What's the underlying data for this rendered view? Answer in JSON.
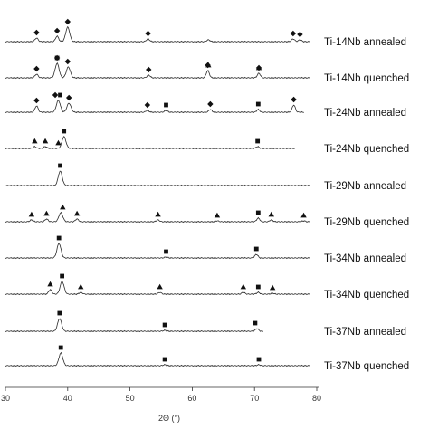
{
  "chart_data": {
    "type": "line",
    "xlabel": "2Θ (°)",
    "xlim": [
      30,
      80
    ],
    "xticks": [
      30,
      40,
      50,
      60,
      70,
      80
    ],
    "tick_labels": [
      "30",
      "40",
      "50",
      "60",
      "70",
      "80"
    ],
    "marker_colors": {
      "trace": "#2a2a2a",
      "marker": "#111111"
    },
    "series": [
      {
        "name": "Ti-14Nb annealed",
        "x_end": 79,
        "peaks": [
          {
            "x": 35.0,
            "h": 4
          },
          {
            "x": 38.3,
            "h": 6
          },
          {
            "x": 40.0,
            "h": 16
          },
          {
            "x": 52.9,
            "h": 3
          },
          {
            "x": 62.6,
            "h": 2
          },
          {
            "x": 76.2,
            "h": 3
          },
          {
            "x": 77.3,
            "h": 2
          }
        ],
        "markers": [
          {
            "x": 35.0,
            "shape": "diamond"
          },
          {
            "x": 38.3,
            "shape": "diamond"
          },
          {
            "x": 40.0,
            "shape": "diamond"
          },
          {
            "x": 52.9,
            "shape": "diamond"
          },
          {
            "x": 76.2,
            "shape": "diamond"
          },
          {
            "x": 77.3,
            "shape": "diamond"
          }
        ]
      },
      {
        "name": "Ti-14Nb quenched",
        "x_end": 79,
        "peaks": [
          {
            "x": 35.0,
            "h": 4
          },
          {
            "x": 38.3,
            "h": 16
          },
          {
            "x": 40.1,
            "h": 12
          },
          {
            "x": 53.0,
            "h": 3
          },
          {
            "x": 62.5,
            "h": 8
          },
          {
            "x": 70.7,
            "h": 5
          }
        ],
        "markers": [
          {
            "x": 35.0,
            "shape": "diamond"
          },
          {
            "x": 38.3,
            "shape": "square"
          },
          {
            "x": 38.3,
            "shape": "diamond"
          },
          {
            "x": 40.0,
            "shape": "diamond"
          },
          {
            "x": 53.0,
            "shape": "diamond"
          },
          {
            "x": 62.5,
            "shape": "diamond"
          },
          {
            "x": 62.6,
            "shape": "triangle"
          },
          {
            "x": 70.7,
            "shape": "diamond"
          },
          {
            "x": 70.7,
            "shape": "triangle"
          }
        ]
      },
      {
        "name": "Ti-24Nb annealed",
        "x_end": 78,
        "peaks": [
          {
            "x": 35.0,
            "h": 7
          },
          {
            "x": 38.5,
            "h": 13
          },
          {
            "x": 40.2,
            "h": 10
          },
          {
            "x": 52.8,
            "h": 2
          },
          {
            "x": 55.8,
            "h": 2
          },
          {
            "x": 62.9,
            "h": 3
          },
          {
            "x": 70.6,
            "h": 3
          },
          {
            "x": 76.3,
            "h": 8
          }
        ],
        "markers": [
          {
            "x": 35.0,
            "shape": "diamond"
          },
          {
            "x": 38.0,
            "shape": "diamond"
          },
          {
            "x": 38.8,
            "shape": "square"
          },
          {
            "x": 40.2,
            "shape": "diamond"
          },
          {
            "x": 52.8,
            "shape": "diamond"
          },
          {
            "x": 55.8,
            "shape": "square"
          },
          {
            "x": 62.9,
            "shape": "diamond"
          },
          {
            "x": 70.6,
            "shape": "square"
          },
          {
            "x": 76.3,
            "shape": "diamond"
          }
        ]
      },
      {
        "name": "Ti-24Nb quenched",
        "x_end": 76.5,
        "peaks": [
          {
            "x": 34.7,
            "h": 2
          },
          {
            "x": 36.4,
            "h": 2
          },
          {
            "x": 39.4,
            "h": 13
          },
          {
            "x": 70.5,
            "h": 2
          }
        ],
        "markers": [
          {
            "x": 34.7,
            "shape": "triangle"
          },
          {
            "x": 36.4,
            "shape": "triangle"
          },
          {
            "x": 38.5,
            "shape": "triangle"
          },
          {
            "x": 39.4,
            "shape": "square"
          },
          {
            "x": 70.5,
            "shape": "square"
          }
        ]
      },
      {
        "name": "Ti-29Nb annealed",
        "x_end": 79,
        "peaks": [
          {
            "x": 38.8,
            "h": 16
          }
        ],
        "markers": [
          {
            "x": 38.8,
            "shape": "square"
          }
        ]
      },
      {
        "name": "Ti-29Nb quenched",
        "x_end": 79,
        "peaks": [
          {
            "x": 34.2,
            "h": 2
          },
          {
            "x": 36.6,
            "h": 3
          },
          {
            "x": 38.9,
            "h": 10
          },
          {
            "x": 41.5,
            "h": 3
          },
          {
            "x": 54.5,
            "h": 2
          },
          {
            "x": 64.0,
            "h": 1
          },
          {
            "x": 70.6,
            "h": 4
          },
          {
            "x": 72.7,
            "h": 2
          },
          {
            "x": 77.9,
            "h": 1
          }
        ],
        "markers": [
          {
            "x": 34.2,
            "shape": "triangle"
          },
          {
            "x": 36.6,
            "shape": "triangle"
          },
          {
            "x": 39.2,
            "shape": "triangle"
          },
          {
            "x": 41.5,
            "shape": "triangle"
          },
          {
            "x": 54.5,
            "shape": "triangle"
          },
          {
            "x": 64.0,
            "shape": "triangle"
          },
          {
            "x": 70.6,
            "shape": "square"
          },
          {
            "x": 72.7,
            "shape": "triangle"
          },
          {
            "x": 77.9,
            "shape": "triangle"
          }
        ]
      },
      {
        "name": "Ti-34Nb annealed",
        "x_end": 79,
        "peaks": [
          {
            "x": 38.6,
            "h": 16
          },
          {
            "x": 55.8,
            "h": 1
          },
          {
            "x": 70.3,
            "h": 4
          }
        ],
        "markers": [
          {
            "x": 38.6,
            "shape": "square"
          },
          {
            "x": 55.8,
            "shape": "square"
          },
          {
            "x": 70.3,
            "shape": "square"
          }
        ]
      },
      {
        "name": "Ti-34Nb quenched",
        "x_end": 79,
        "peaks": [
          {
            "x": 37.2,
            "h": 5
          },
          {
            "x": 39.1,
            "h": 14
          },
          {
            "x": 42.1,
            "h": 2
          },
          {
            "x": 54.8,
            "h": 2
          },
          {
            "x": 68.2,
            "h": 2
          },
          {
            "x": 70.6,
            "h": 2
          },
          {
            "x": 72.9,
            "h": 1
          }
        ],
        "markers": [
          {
            "x": 37.2,
            "shape": "triangle"
          },
          {
            "x": 39.1,
            "shape": "square"
          },
          {
            "x": 42.1,
            "shape": "triangle"
          },
          {
            "x": 54.8,
            "shape": "triangle"
          },
          {
            "x": 68.2,
            "shape": "triangle"
          },
          {
            "x": 70.6,
            "shape": "square"
          },
          {
            "x": 72.9,
            "shape": "triangle"
          }
        ]
      },
      {
        "name": "Ti-37Nb annealed",
        "x_end": 71.5,
        "peaks": [
          {
            "x": 38.7,
            "h": 14
          },
          {
            "x": 55.6,
            "h": 1
          },
          {
            "x": 70.4,
            "h": 3
          }
        ],
        "markers": [
          {
            "x": 38.7,
            "shape": "square"
          },
          {
            "x": 55.6,
            "shape": "square"
          },
          {
            "x": 70.1,
            "shape": "square"
          }
        ]
      },
      {
        "name": "Ti-37Nb quenched",
        "x_end": 79,
        "peaks": [
          {
            "x": 38.9,
            "h": 14
          },
          {
            "x": 55.6,
            "h": 1
          },
          {
            "x": 70.7,
            "h": 1
          }
        ],
        "markers": [
          {
            "x": 38.9,
            "shape": "square"
          },
          {
            "x": 55.6,
            "shape": "square"
          },
          {
            "x": 70.7,
            "shape": "square"
          }
        ]
      }
    ]
  }
}
